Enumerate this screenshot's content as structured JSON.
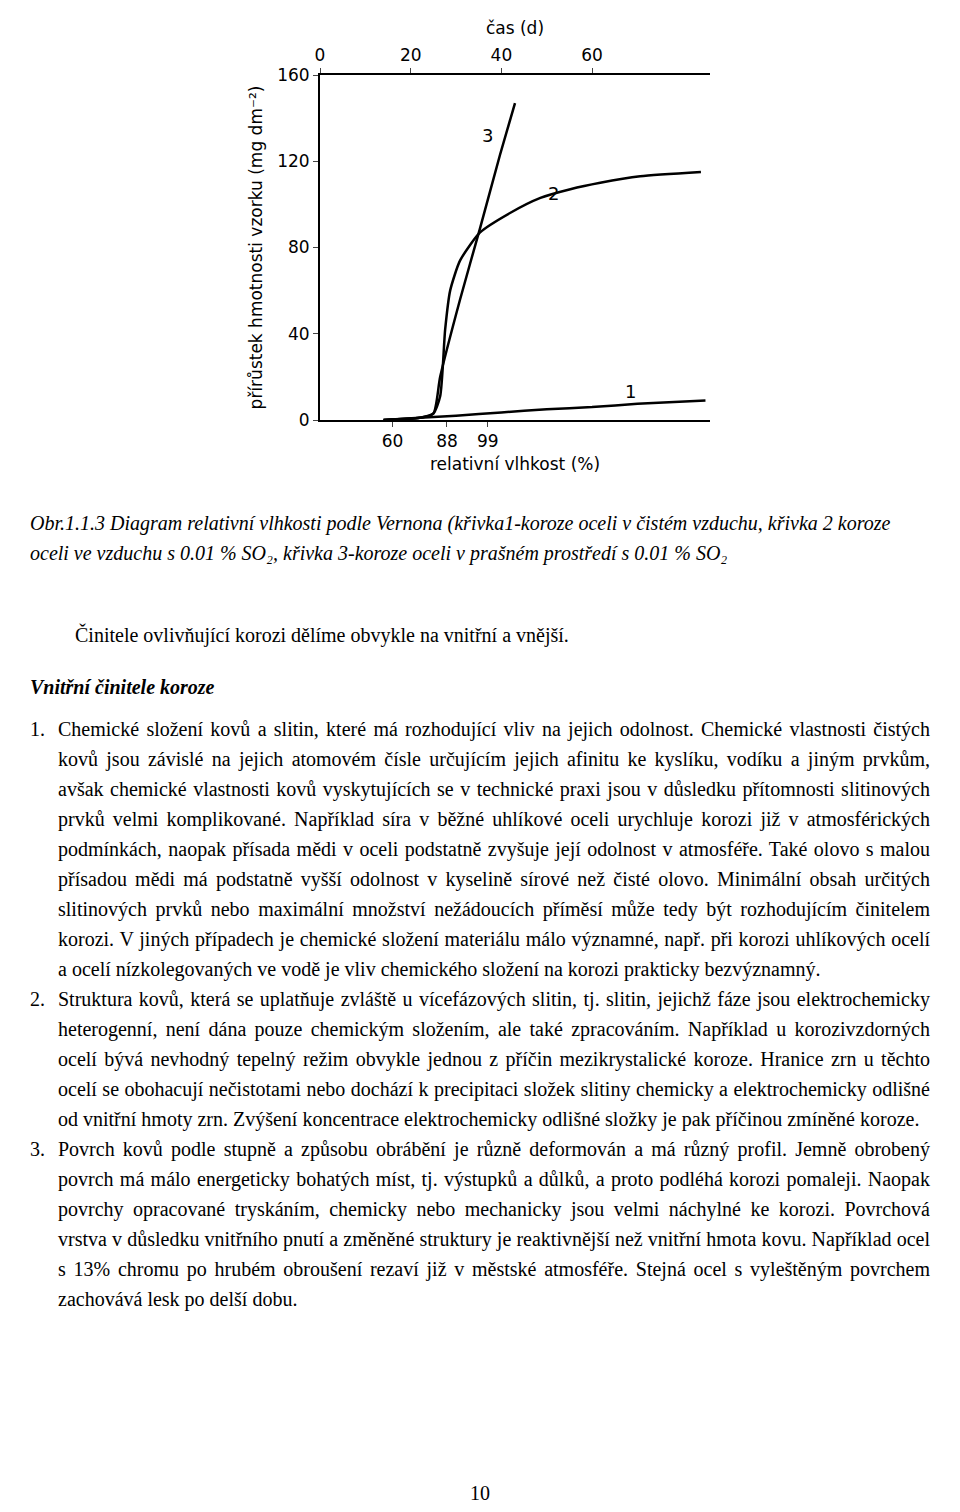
{
  "chart_data": {
    "type": "line",
    "xlabel": "čas (d)",
    "x2label": "relativní vlhkost (%)",
    "ylabel": "přírůstek hmotnosti vzorku (mg dm⁻²)",
    "xlim": [
      0,
      86
    ],
    "xticks": [
      0,
      20,
      40,
      60
    ],
    "x2ticks": [
      {
        "value": 16,
        "label": "60"
      },
      {
        "value": 28,
        "label": "88"
      },
      {
        "value": 37,
        "label": "99"
      }
    ],
    "ylim": [
      0,
      160
    ],
    "yticks": [
      0,
      40,
      80,
      120,
      160
    ],
    "grid": false,
    "series": [
      {
        "name": "1",
        "color": "#000000",
        "x": [
          14,
          22,
          30,
          40,
          50,
          60,
          70,
          85
        ],
        "values": [
          0,
          1,
          2,
          3.5,
          5,
          6,
          7.5,
          9
        ]
      },
      {
        "name": "2",
        "color": "#000000",
        "x": [
          14,
          22,
          25,
          26.5,
          27.6,
          28.7,
          30.9,
          35.3,
          41.9,
          48.6,
          55.2,
          61.8,
          70.6,
          84
        ],
        "values": [
          0,
          1,
          3,
          11,
          42,
          60,
          74,
          87,
          96,
          103,
          107,
          110,
          113,
          115
        ]
      },
      {
        "name": "3",
        "color": "#000000",
        "x": [
          14,
          22,
          25,
          26.5,
          30.9,
          35.3,
          39.7,
          43
        ],
        "values": [
          0,
          1,
          3,
          20,
          56,
          89,
          123,
          147
        ]
      }
    ],
    "annotations": [
      {
        "text": "3",
        "x": 37,
        "y": 132
      },
      {
        "text": "2",
        "x": 51.4,
        "y": 105
      },
      {
        "text": "1",
        "x": 68.4,
        "y": 13
      }
    ]
  },
  "document": {
    "caption": "Obr.1.1.3 Diagram relativní vlhkosti podle Vernona (křivka1-koroze oceli v čistém vzduchu, křivka 2 koroze oceli ve vzduchu s 0.01 % SO₂, křivka 3-koroze oceli v prašném prostředí s 0.01 % SO₂",
    "intro": "Činitele ovlivňující korozi dělíme obvykle na vnitřní a vnější.",
    "heading": "Vnitřní činitele koroze",
    "items": [
      {
        "number": "1.",
        "text": "Chemické složení kovů a slitin, které má rozhodující vliv na jejich odolnost. Chemické vlastnosti čistých kovů jsou závislé na jejich atomovém čísle určujícím jejich afinitu ke kyslíku, vodíku a jiným prvkům, avšak chemické vlastnosti kovů vyskytujících se v technické praxi jsou v důsledku přítomnosti slitinových prvků velmi komplikované. Například síra v běžné uhlíkové oceli urychluje korozi již v atmosférických podmínkách, naopak přísada mědi v oceli podstatně zvyšuje její odolnost v atmosféře. Také olovo s malou přísadou mědi má podstatně vyšší odolnost v kyselině sírové než čisté olovo. Minimální obsah určitých slitinových prvků nebo maximální množství nežádoucích příměsí může tedy být rozhodujícím činitelem korozi. V jiných případech je chemické složení materiálu málo významné, např. při korozi uhlíkových ocelí a ocelí nízkolegovaných ve vodě je vliv chemického složení na korozi prakticky bezvýznamný."
      },
      {
        "number": "2.",
        "text": "Struktura kovů, která se uplatňuje zvláště u vícefázových slitin, tj. slitin, jejichž fáze jsou elektrochemicky heterogenní, není dána pouze chemickým složením, ale také zpracováním. Například u korozivzdorných ocelí bývá nevhodný tepelný režim obvykle jednou z příčin mezikrystalické koroze. Hranice zrn u těchto ocelí se obohacují nečistotami nebo dochází k precipitaci složek slitiny chemicky a elektrochemicky odlišné od vnitřní hmoty zrn. Zvýšení koncentrace elektrochemicky odlišné složky je pak příčinou zmíněné koroze."
      },
      {
        "number": "3.",
        "text": "Povrch kovů podle stupně a způsobu obrábění je různě deformován a má různý profil. Jemně obrobený povrch má málo energeticky bohatých míst, tj. výstupků a důlků, a proto podléhá korozi pomaleji. Naopak povrchy opracované tryskáním, chemicky nebo mechanicky jsou velmi náchylné ke korozi. Povrchová vrstva v důsledku vnitřního pnutí a změněné struktury je reaktivnější než vnitřní hmota kovu. Například ocel s 13% chromu po hrubém obroušení rezaví již v městské atmosféře. Stejná ocel s vyleštěným povrchem zachovává lesk po delší dobu."
      }
    ],
    "page_number": "10"
  }
}
